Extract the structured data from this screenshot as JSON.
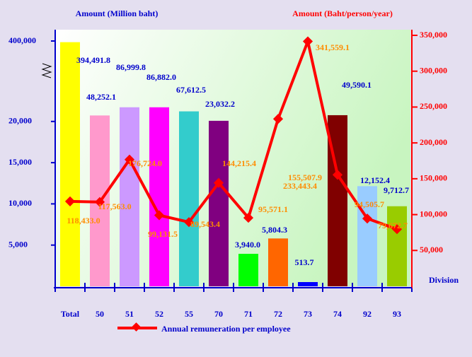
{
  "chart_data": {
    "type": "bar_line",
    "y_label": "Amount (Million baht)",
    "y2_label": "Amount (Baht/person/year)",
    "x_label": "Division",
    "categories": [
      "Total",
      "50",
      "51",
      "52",
      "55",
      "70",
      "71",
      "72",
      "73",
      "74",
      "92",
      "93"
    ],
    "bars": {
      "values": [
        394491.8,
        48252.1,
        86999.8,
        86882.0,
        67612.5,
        23032.2,
        3940.0,
        5804.3,
        513.7,
        49590.1,
        12152.4,
        9712.7
      ],
      "value_labels": [
        "394,491.8",
        "48,252.1",
        "86,999.8",
        "86,882.0",
        "67,612.5",
        "23,032.2",
        "3,940.0",
        "5,804.3",
        "513.7",
        "49,590.1",
        "12,152.4",
        "9,712.7"
      ],
      "colors": [
        "#ffff00",
        "#ff99cc",
        "#cc99ff",
        "#ff00ff",
        "#33cccc",
        "#800080",
        "#00ff00",
        "#ff6600",
        "#0000ff",
        "#800000",
        "#99ccff",
        "#99cc00"
      ]
    },
    "series": [
      {
        "name": "Annual remuneration per employee",
        "color": "#ff0000",
        "axis": "y2",
        "values": [
          118433.0,
          117563.0,
          176724.0,
          99131.5,
          89543.4,
          144215.4,
          95571.1,
          233443.4,
          341559.1,
          155507.9,
          94505.7,
          79672.7
        ],
        "value_labels": [
          "118,433.0",
          "117,563.0",
          "176,724.0",
          "99,131.5",
          "89,543.4",
          "144,215.4",
          "95,571.1",
          "233,443.4",
          "341,559.1",
          "155,507.9",
          "94,505.7",
          "79,672.7"
        ]
      }
    ],
    "ylim": [
      0,
      400000
    ],
    "yticks": [
      {
        "value": 5000,
        "label": "5,000"
      },
      {
        "value": 10000,
        "label": "10,000"
      },
      {
        "value": 15000,
        "label": "15,000"
      },
      {
        "value": 20000,
        "label": "20,000"
      },
      {
        "value": 400000,
        "label": "400,000"
      }
    ],
    "y2lim": [
      0,
      350000
    ],
    "y2ticks": [
      {
        "value": 50000,
        "label": "50,000"
      },
      {
        "value": 100000,
        "label": "100,000"
      },
      {
        "value": 150000,
        "label": "150,000"
      },
      {
        "value": 200000,
        "label": "200,000"
      },
      {
        "value": 250000,
        "label": "250,000"
      },
      {
        "value": 300000,
        "label": "300,000"
      },
      {
        "value": 350000,
        "label": "350,000"
      }
    ]
  }
}
